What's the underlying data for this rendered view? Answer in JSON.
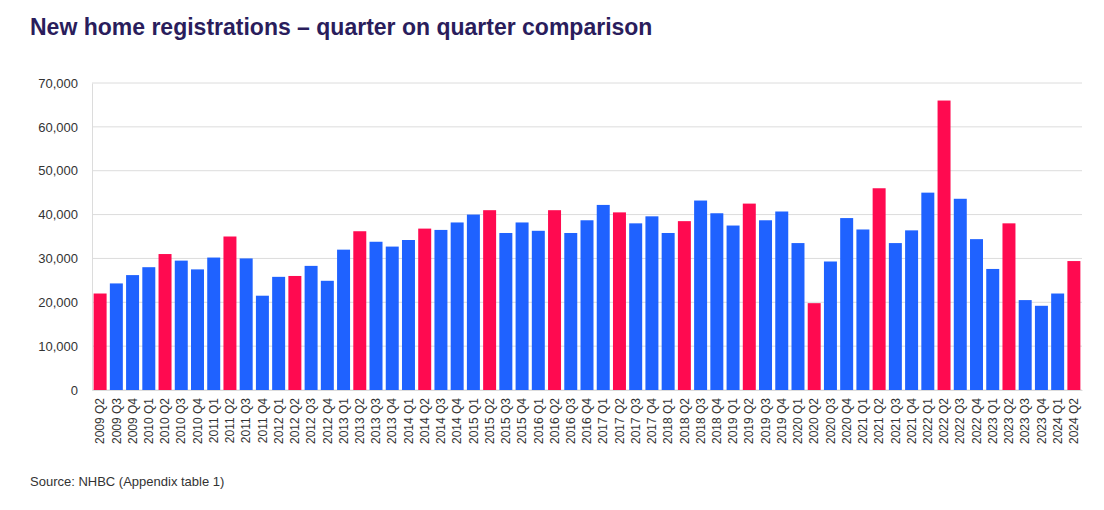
{
  "chart_data": {
    "type": "bar",
    "title": "New home registrations – quarter on quarter comparison",
    "source": "Source: NHBC (Appendix table 1)",
    "categories": [
      "2009 Q2",
      "2009 Q3",
      "2009 Q4",
      "2010 Q1",
      "2010 Q2",
      "2010 Q3",
      "2010 Q4",
      "2011 Q1",
      "2011 Q2",
      "2011 Q3",
      "2011 Q4",
      "2012 Q1",
      "2012 Q2",
      "2012 Q3",
      "2012 Q4",
      "2013 Q1",
      "2013 Q2",
      "2013 Q3",
      "2013 Q4",
      "2014 Q1",
      "2014 Q2",
      "2014 Q3",
      "2014 Q4",
      "2015 Q1",
      "2015 Q2",
      "2015 Q3",
      "2015 Q4",
      "2016 Q1",
      "2016 Q2",
      "2016 Q3",
      "2016 Q4",
      "2017 Q1",
      "2017 Q2",
      "2017 Q3",
      "2017 Q4",
      "2018 Q1",
      "2018 Q2",
      "2018 Q3",
      "2018 Q4",
      "2019 Q1",
      "2019 Q2",
      "2019 Q3",
      "2019 Q4",
      "2020 Q1",
      "2020 Q2",
      "2020 Q3",
      "2020 Q4",
      "2021 Q1",
      "2021 Q2",
      "2021 Q3",
      "2021 Q4",
      "2022 Q1",
      "2022 Q2",
      "2022 Q3",
      "2022 Q4",
      "2023 Q1",
      "2023 Q2",
      "2023 Q3",
      "2023 Q4",
      "2024 Q1",
      "2024 Q2"
    ],
    "values": [
      22000,
      24300,
      26200,
      28000,
      31000,
      29500,
      27500,
      30200,
      35000,
      30000,
      21500,
      25800,
      26000,
      28300,
      24900,
      32000,
      36200,
      33800,
      32700,
      34200,
      36800,
      36500,
      38200,
      40000,
      41000,
      35800,
      38200,
      36300,
      41000,
      35800,
      38700,
      42200,
      40500,
      38000,
      39600,
      35800,
      38500,
      43200,
      40300,
      37500,
      42500,
      38700,
      40700,
      33500,
      19800,
      29300,
      39200,
      36600,
      46000,
      33500,
      36400,
      45000,
      66000,
      43600,
      34400,
      27600,
      38000,
      20500,
      19200,
      22000,
      29400
    ],
    "colors": [
      "#ff0a50",
      "#1f62ff",
      "#1f62ff",
      "#1f62ff",
      "#ff0a50",
      "#1f62ff",
      "#1f62ff",
      "#1f62ff",
      "#ff0a50",
      "#1f62ff",
      "#1f62ff",
      "#1f62ff",
      "#ff0a50",
      "#1f62ff",
      "#1f62ff",
      "#1f62ff",
      "#ff0a50",
      "#1f62ff",
      "#1f62ff",
      "#1f62ff",
      "#ff0a50",
      "#1f62ff",
      "#1f62ff",
      "#1f62ff",
      "#ff0a50",
      "#1f62ff",
      "#1f62ff",
      "#1f62ff",
      "#ff0a50",
      "#1f62ff",
      "#1f62ff",
      "#1f62ff",
      "#ff0a50",
      "#1f62ff",
      "#1f62ff",
      "#1f62ff",
      "#ff0a50",
      "#1f62ff",
      "#1f62ff",
      "#1f62ff",
      "#ff0a50",
      "#1f62ff",
      "#1f62ff",
      "#1f62ff",
      "#ff0a50",
      "#1f62ff",
      "#1f62ff",
      "#1f62ff",
      "#ff0a50",
      "#1f62ff",
      "#1f62ff",
      "#1f62ff",
      "#ff0a50",
      "#1f62ff",
      "#1f62ff",
      "#1f62ff",
      "#ff0a50",
      "#1f62ff",
      "#1f62ff",
      "#1f62ff",
      "#ff0a50"
    ],
    "ylim": [
      0,
      70000
    ],
    "yticks": [
      0,
      {
        "value": 10000,
        "label": "10,000"
      },
      {
        "value": 20000,
        "label": "20,000"
      },
      {
        "value": 30000,
        "label": "30,000"
      },
      {
        "value": 40000,
        "label": "40,000"
      },
      {
        "value": 50000,
        "label": "50,000"
      },
      {
        "value": 60000,
        "label": "60,000"
      },
      {
        "value": 70000,
        "label": "70,000"
      }
    ],
    "grid": true
  }
}
